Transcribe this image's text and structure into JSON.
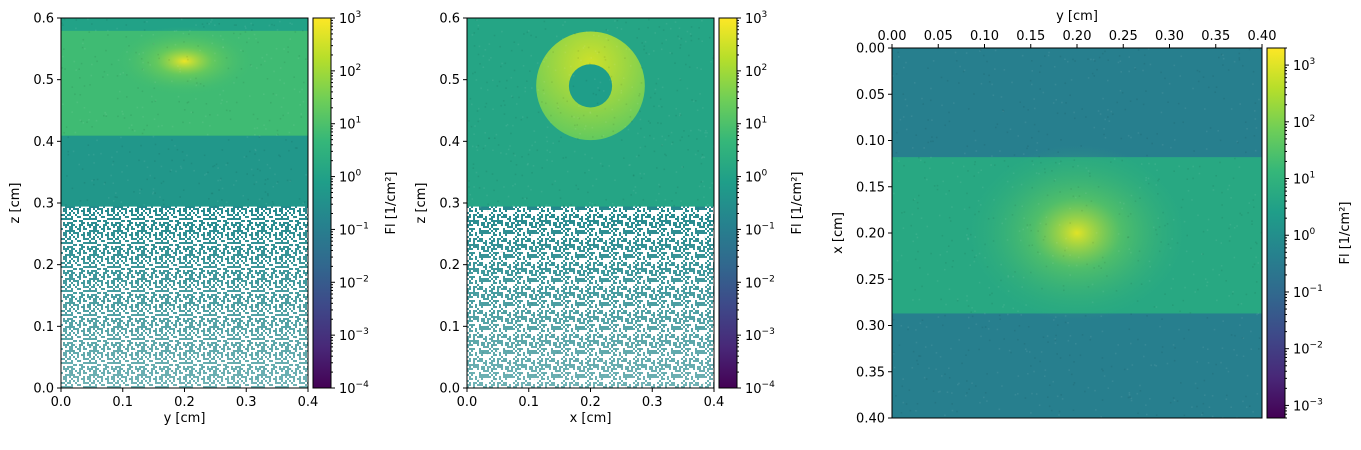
{
  "figure": {
    "background": "#ffffff"
  },
  "colormap": {
    "name": "viridis",
    "stops": [
      "#440154",
      "#482878",
      "#3e4989",
      "#31688e",
      "#26828e",
      "#1f9e89",
      "#35b779",
      "#6ece58",
      "#b5de2b",
      "#fde725"
    ]
  },
  "chart_data": [
    {
      "type": "heatmap",
      "xlabel": "y [cm]",
      "ylabel": "z [cm]",
      "xlim": [
        0.0,
        0.4
      ],
      "ylim": [
        0.0,
        0.6
      ],
      "xticks": [
        "0.0",
        "0.1",
        "0.2",
        "0.3",
        "0.4"
      ],
      "yticks": [
        "0.0",
        "0.1",
        "0.2",
        "0.3",
        "0.4",
        "0.5",
        "0.6"
      ],
      "colorbar": {
        "label": "Fl [1/cm²]",
        "scale": "log",
        "range": [
          0.0001,
          1000
        ],
        "ticks": [
          {
            "mant": "10",
            "exp": "3"
          },
          {
            "mant": "10",
            "exp": "2"
          },
          {
            "mant": "10",
            "exp": "1"
          },
          {
            "mant": "10",
            "exp": "0"
          },
          {
            "mant": "10",
            "exp": "−1"
          },
          {
            "mant": "10",
            "exp": "−2"
          },
          {
            "mant": "10",
            "exp": "−3"
          },
          {
            "mant": "10",
            "exp": "−4"
          }
        ]
      },
      "regions": [
        {
          "from": 0.0,
          "to": 0.295,
          "log10_fluence": -0.7,
          "sparse": true
        },
        {
          "from": 0.295,
          "to": 0.41,
          "log10_fluence": -0.3
        },
        {
          "from": 0.41,
          "to": 0.58,
          "log10_fluence": 0.8
        },
        {
          "from": 0.58,
          "to": 0.6,
          "log10_fluence": 0.0
        }
      ],
      "hotspot": {
        "x": 0.2,
        "y": 0.53,
        "log10_fluence": 2.8
      }
    },
    {
      "type": "heatmap",
      "xlabel": "x [cm]",
      "ylabel": "z [cm]",
      "xlim": [
        0.0,
        0.4
      ],
      "ylim": [
        0.0,
        0.6
      ],
      "xticks": [
        "0.0",
        "0.1",
        "0.2",
        "0.3",
        "0.4"
      ],
      "yticks": [
        "0.0",
        "0.1",
        "0.2",
        "0.3",
        "0.4",
        "0.5",
        "0.6"
      ],
      "colorbar": {
        "label": "Fl [1/cm²]",
        "scale": "log",
        "range": [
          0.0001,
          1000
        ],
        "ticks": [
          {
            "mant": "10",
            "exp": "3"
          },
          {
            "mant": "10",
            "exp": "2"
          },
          {
            "mant": "10",
            "exp": "1"
          },
          {
            "mant": "10",
            "exp": "0"
          },
          {
            "mant": "10",
            "exp": "−1"
          },
          {
            "mant": "10",
            "exp": "−2"
          },
          {
            "mant": "10",
            "exp": "−3"
          },
          {
            "mant": "10",
            "exp": "−4"
          }
        ]
      },
      "regions": [
        {
          "from": 0.0,
          "to": 0.295,
          "log10_fluence": -0.7,
          "sparse": true
        },
        {
          "from": 0.295,
          "to": 0.6,
          "log10_fluence": 0.1
        }
      ],
      "ring": {
        "cx": 0.2,
        "cz": 0.49,
        "r_outer": 0.088,
        "r_inner": 0.035,
        "log10_fluence": 1.6,
        "inner_log10_fluence": -0.1
      }
    },
    {
      "type": "heatmap",
      "xlabel": "y [cm]",
      "ylabel": "x [cm]",
      "x_axis_position": "top",
      "xlim": [
        0.0,
        0.4
      ],
      "ylim": [
        0.4,
        0.0
      ],
      "xticks": [
        "0.00",
        "0.05",
        "0.10",
        "0.15",
        "0.20",
        "0.25",
        "0.30",
        "0.35",
        "0.40"
      ],
      "yticks": [
        "0.00",
        "0.05",
        "0.10",
        "0.15",
        "0.20",
        "0.25",
        "0.30",
        "0.35",
        "0.40"
      ],
      "colorbar": {
        "label": "Fl [1/cm²]",
        "scale": "log",
        "range": [
          0.0006,
          2000
        ],
        "ticks": [
          {
            "mant": "10",
            "exp": "3"
          },
          {
            "mant": "10",
            "exp": "2"
          },
          {
            "mant": "10",
            "exp": "1"
          },
          {
            "mant": "10",
            "exp": "0"
          },
          {
            "mant": "10",
            "exp": "−1"
          },
          {
            "mant": "10",
            "exp": "−2"
          },
          {
            "mant": "10",
            "exp": "−3"
          }
        ]
      },
      "regions": [
        {
          "from": 0.0,
          "to": 0.118,
          "log10_fluence": -0.4
        },
        {
          "from": 0.118,
          "to": 0.287,
          "log10_fluence": 0.7
        },
        {
          "from": 0.287,
          "to": 0.4,
          "log10_fluence": -0.4
        }
      ],
      "hotspot": {
        "x": 0.2,
        "y": 0.2,
        "log10_fluence": 3.0
      }
    }
  ]
}
